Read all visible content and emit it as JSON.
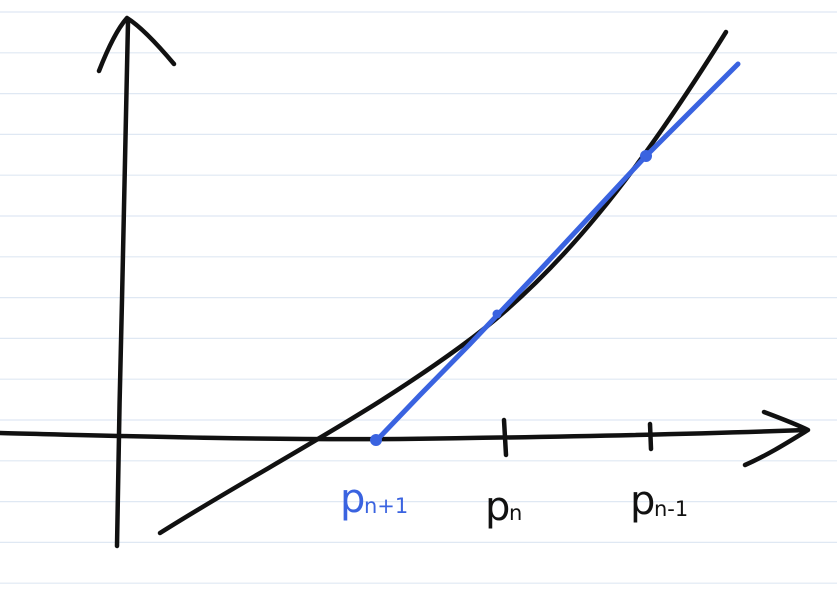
{
  "colors": {
    "paper": "#ffffff",
    "ruled_line": "#dfe8f3",
    "ink": "#111111",
    "secant": "#3a63e0"
  },
  "diagram": {
    "kind": "secant-method-sketch",
    "labels": {
      "p_next": {
        "base": "p",
        "sub": "n+1"
      },
      "p_n": {
        "base": "p",
        "sub": "n"
      },
      "p_prev": {
        "base": "p",
        "sub": "n-1"
      }
    }
  }
}
